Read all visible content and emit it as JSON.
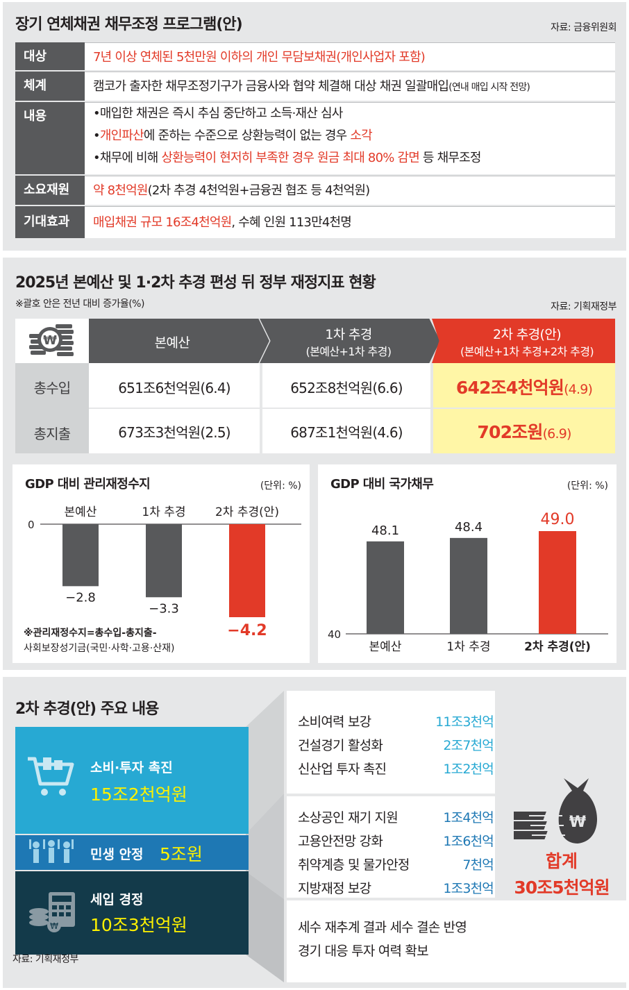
{
  "program": {
    "title": "장기 연체채권 채무조정 프로그램(안)",
    "source": "자료: 금융위원회",
    "rows": {
      "target_label": "대상",
      "target_value": "7년 이상 연체된 5천만원 이하의 개인 무담보채권(개인사업자 포함)",
      "system_label": "체계",
      "system_value": "캠코가 출자한 채무조정기구가 금융사와 협약 체결해 대상 채권 일괄매입",
      "system_note": "(연내 매입 시작 전망)",
      "content_label": "내용",
      "content_b1": "•매입한 채권은 즉시 추심 중단하고 소득·재산 심사",
      "content_b2_dot": "•",
      "content_b2_red1": "개인파산",
      "content_b2_mid": "에 준하는 수준으로 상환능력이 없는 경우 ",
      "content_b2_red2": "소각",
      "content_b3_pre": "•채무에 비해 ",
      "content_b3_red": "상환능력이 현저히 부족한 경우 원금 최대 80% 감면",
      "content_b3_post": " 등 채무조정",
      "funding_label": "소요재원",
      "funding_red": "약 8천억원",
      "funding_rest": "(2차 추경 4천억원+금융권 협조 등 4천억원)",
      "effect_label": "기대효과",
      "effect_red": "매입채권 규모 16조4천억원",
      "effect_rest": ", 수혜 인원 113만4천명"
    }
  },
  "fiscal": {
    "title": "2025년 본예산 및 1·2차 추경 편성 뒤 정부 재정지표 현황",
    "note": "※괄호 안은 전년 대비 증가율(%)",
    "source": "자료: 기획재정부",
    "headers": {
      "base": "본예산",
      "first": "1차 추경",
      "first_sub": "(본예산+1차 추경)",
      "second": "2차 추경(안)",
      "second_sub": "(본예산+1차 추경+2차 추경)"
    },
    "revenue": {
      "label": "총수입",
      "base": "651조6천억원",
      "base_rate": "(6.4)",
      "first": "652조8천억원",
      "first_rate": "(6.6)",
      "second": "642조4천억원",
      "second_rate": "(4.9)"
    },
    "expenditure": {
      "label": "총지출",
      "base": "673조3천억원",
      "base_rate": "(2.5)",
      "first": "687조1천억원",
      "first_rate": "(4.6)",
      "second": "702조원",
      "second_rate": "(6.9)"
    }
  },
  "chart_data": [
    {
      "type": "bar",
      "title": "GDP 대비 관리재정수지",
      "unit": "(단위: %)",
      "categories": [
        "본예산",
        "1차 추경",
        "2차 추경(안)"
      ],
      "values": [
        -2.8,
        -3.3,
        -4.2
      ],
      "value_labels": [
        "−2.8",
        "−3.3",
        "−4.2"
      ],
      "zero_label": "0",
      "ylim": [
        -4.2,
        0
      ],
      "colors": [
        "#58595b",
        "#58595b",
        "#e23a28"
      ],
      "note_line1": "※관리재정수지=총수입-총지출-",
      "note_line2": "사회보장성기금(국민·사학·고용·산재)"
    },
    {
      "type": "bar",
      "title": "GDP 대비 국가채무",
      "unit": "(단위: %)",
      "categories": [
        "본예산",
        "1차 추경",
        "2차 추경(안)"
      ],
      "values": [
        48.1,
        48.4,
        49.0
      ],
      "value_labels": [
        "48.1",
        "48.4",
        "49.0"
      ],
      "baseline_label": "40",
      "ylim": [
        40,
        49.0
      ],
      "colors": [
        "#58595b",
        "#58595b",
        "#e23a28"
      ]
    }
  ],
  "supplementary": {
    "title": "2차 추경(안) 주요 내용",
    "source": "자료: 기획재정부",
    "blocks": [
      {
        "name": "소비·투자 촉진",
        "amount": "15조2천억원"
      },
      {
        "name": "민생 안정",
        "amount": "5조원"
      },
      {
        "name": "세입 경정",
        "amount": "10조3천억원"
      }
    ],
    "group1": [
      {
        "label": "소비여력 보강",
        "amount": "11조3천억"
      },
      {
        "label": "건설경기 활성화",
        "amount": "2조7천억"
      },
      {
        "label": "신산업 투자 촉진",
        "amount": "1조2천억"
      }
    ],
    "group2": [
      {
        "label": "소상공인 재기 지원",
        "amount": "1조4천억"
      },
      {
        "label": "고용안전망 강화",
        "amount": "1조6천억"
      },
      {
        "label": "취약계층 및 물가안정",
        "amount": "7천억"
      },
      {
        "label": "지방재정 보강",
        "amount": "1조3천억"
      }
    ],
    "group3": [
      {
        "label": "세수 재추계 결과 세수 결손 반영"
      },
      {
        "label": "경기 대응 투자 여력 확보"
      }
    ],
    "total_label": "합계",
    "total_amount": "30조5천억원",
    "colors": {
      "accent_cyan": "#27a9d3",
      "dark_teal": "#133a4a",
      "mid_blue": "#1e78b4",
      "yellow": "#fff200",
      "red": "#e23a28"
    }
  }
}
